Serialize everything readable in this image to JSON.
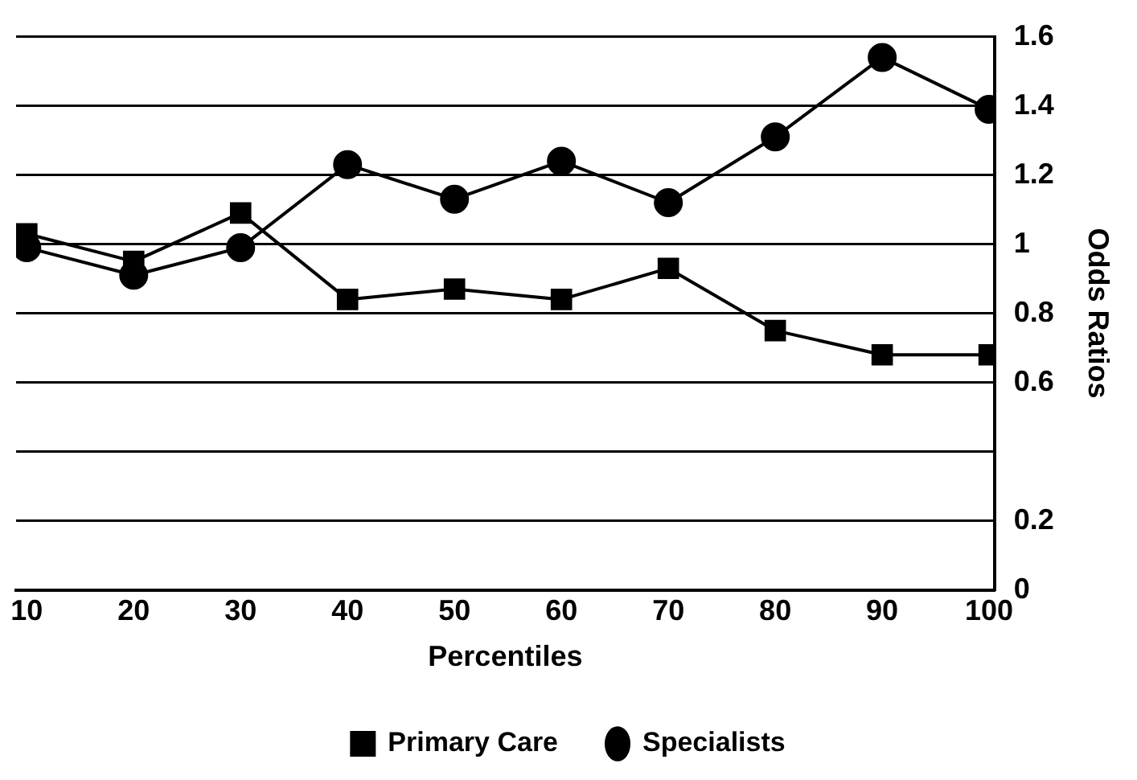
{
  "chart_data": {
    "type": "line",
    "xlabel": "Percentiles",
    "ylabel": "Odds Ratios",
    "x": [
      10,
      20,
      30,
      40,
      50,
      60,
      70,
      80,
      90,
      100
    ],
    "series": [
      {
        "name": "Primary Care",
        "color": "#000000",
        "marker": "square",
        "values": [
          1.03,
          0.95,
          1.09,
          0.84,
          0.87,
          0.84,
          0.93,
          0.75,
          0.68,
          0.68
        ]
      },
      {
        "name": "Specialists",
        "color": "#000000",
        "marker": "circle",
        "values": [
          0.99,
          0.91,
          0.99,
          1.23,
          1.13,
          1.24,
          1.12,
          1.31,
          1.54,
          1.39
        ]
      }
    ],
    "xlim": [
      9,
      100.5
    ],
    "xticks": [
      10,
      20,
      30,
      40,
      50,
      60,
      70,
      80,
      90,
      100
    ],
    "ylim": [
      0,
      1.6
    ],
    "yticks": [
      0,
      0.2,
      {
        "value": 0.4,
        "label": null
      },
      0.6,
      0.8,
      1,
      1.2,
      1.4,
      1.6
    ],
    "grid": "y",
    "legend": "bottom",
    "line_style": "solid"
  }
}
